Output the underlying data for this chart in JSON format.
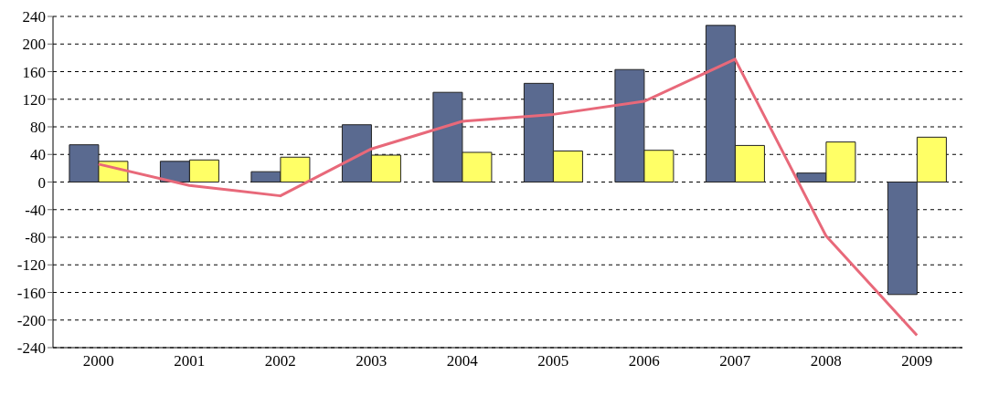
{
  "chart_data": {
    "type": "bar",
    "categories": [
      "2000",
      "2001",
      "2002",
      "2003",
      "2004",
      "2005",
      "2006",
      "2007",
      "2008",
      "2009"
    ],
    "series": [
      {
        "color": "#5a6a90",
        "values": [
          54,
          30,
          15,
          83,
          130,
          143,
          163,
          227,
          13,
          -163
        ]
      },
      {
        "color": "#ffff66",
        "values": [
          30,
          32,
          36,
          39,
          43,
          45,
          46,
          53,
          58,
          65
        ]
      },
      {
        "type": "line",
        "color": "#e8697a",
        "values": [
          26,
          -5,
          -20,
          48,
          88,
          98,
          117,
          178,
          -78,
          -222
        ]
      }
    ],
    "ylim": [
      -240,
      240
    ],
    "yticks": [
      -240,
      -200,
      -160,
      -120,
      -80,
      -40,
      0,
      40,
      80,
      120,
      160,
      200,
      240
    ],
    "grid": "y",
    "legend": false,
    "marker": "none",
    "line_style": "solid"
  }
}
